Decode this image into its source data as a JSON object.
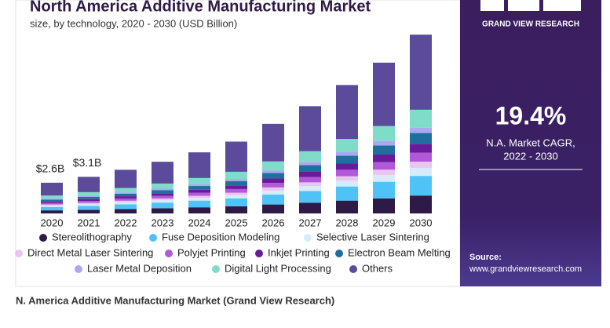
{
  "chart_data": {
    "type": "stacked_bar",
    "title": "North America Additive Manufacturing Market",
    "subtitle": "size, by technology, 2020 - 2030 (USD Billion)",
    "categories": [
      "2020",
      "2021",
      "2022",
      "2023",
      "2024",
      "2025",
      "2026",
      "2027",
      "2028",
      "2029",
      "2030"
    ],
    "series": [
      {
        "name": "Stereolithography",
        "color": "#2e1a47",
        "values": [
          0.26,
          0.31,
          0.37,
          0.44,
          0.52,
          0.61,
          0.76,
          0.91,
          1.09,
          1.28,
          1.52
        ]
      },
      {
        "name": "Fuse Deposition Modeling",
        "color": "#4fc3f7",
        "values": [
          0.29,
          0.34,
          0.41,
          0.48,
          0.57,
          0.67,
          0.84,
          1.0,
          1.2,
          1.41,
          1.67
        ]
      },
      {
        "name": "Selective Laser Sintering",
        "color": "#d6ecfb",
        "values": [
          0.12,
          0.14,
          0.17,
          0.2,
          0.23,
          0.27,
          0.34,
          0.41,
          0.49,
          0.58,
          0.68
        ]
      },
      {
        "name": "Direct Metal Laser Sintering",
        "color": "#e9c6f0",
        "values": [
          0.09,
          0.11,
          0.13,
          0.15,
          0.18,
          0.21,
          0.27,
          0.32,
          0.38,
          0.45,
          0.53
        ]
      },
      {
        "name": "Polyjet Printing",
        "color": "#b05ad9",
        "values": [
          0.13,
          0.16,
          0.19,
          0.22,
          0.26,
          0.31,
          0.38,
          0.46,
          0.55,
          0.64,
          0.76
        ]
      },
      {
        "name": "Inkjet Printing",
        "color": "#6a1b9a",
        "values": [
          0.13,
          0.16,
          0.19,
          0.22,
          0.26,
          0.31,
          0.38,
          0.46,
          0.55,
          0.64,
          0.76
        ]
      },
      {
        "name": "Electron Beam Melting",
        "color": "#1f6f9e",
        "values": [
          0.16,
          0.19,
          0.22,
          0.26,
          0.31,
          0.37,
          0.46,
          0.55,
          0.65,
          0.77,
          0.91
        ]
      },
      {
        "name": "Laser Metal Deposition",
        "color": "#a9a8f0",
        "values": [
          0.08,
          0.09,
          0.11,
          0.13,
          0.16,
          0.18,
          0.23,
          0.27,
          0.33,
          0.38,
          0.46
        ]
      },
      {
        "name": "Digital Light Processing",
        "color": "#7fdcc8",
        "values": [
          0.26,
          0.31,
          0.37,
          0.44,
          0.52,
          0.61,
          0.76,
          0.91,
          1.09,
          1.28,
          1.52
        ]
      },
      {
        "name": "Others",
        "color": "#5b4b9a",
        "values": [
          1.09,
          1.3,
          1.55,
          1.85,
          2.18,
          2.56,
          3.19,
          3.82,
          4.58,
          5.38,
          6.38
        ]
      }
    ],
    "annotations": [
      {
        "x": "2020",
        "value": 2.6,
        "label": "$2.6B"
      },
      {
        "x": "2021",
        "value": 3.1,
        "label": "$3.1B"
      }
    ]
  },
  "side_panel": {
    "brand": "GRAND VIEW RESEARCH",
    "cagr": "19.4%",
    "cagr_label": "N.A. Market CAGR,",
    "period": "2022 - 2030",
    "source_label": "Source:",
    "source_url": "www.grandviewresearch.com"
  },
  "caption": "N. America Additive Manufacturing Market (Grand View Research)"
}
